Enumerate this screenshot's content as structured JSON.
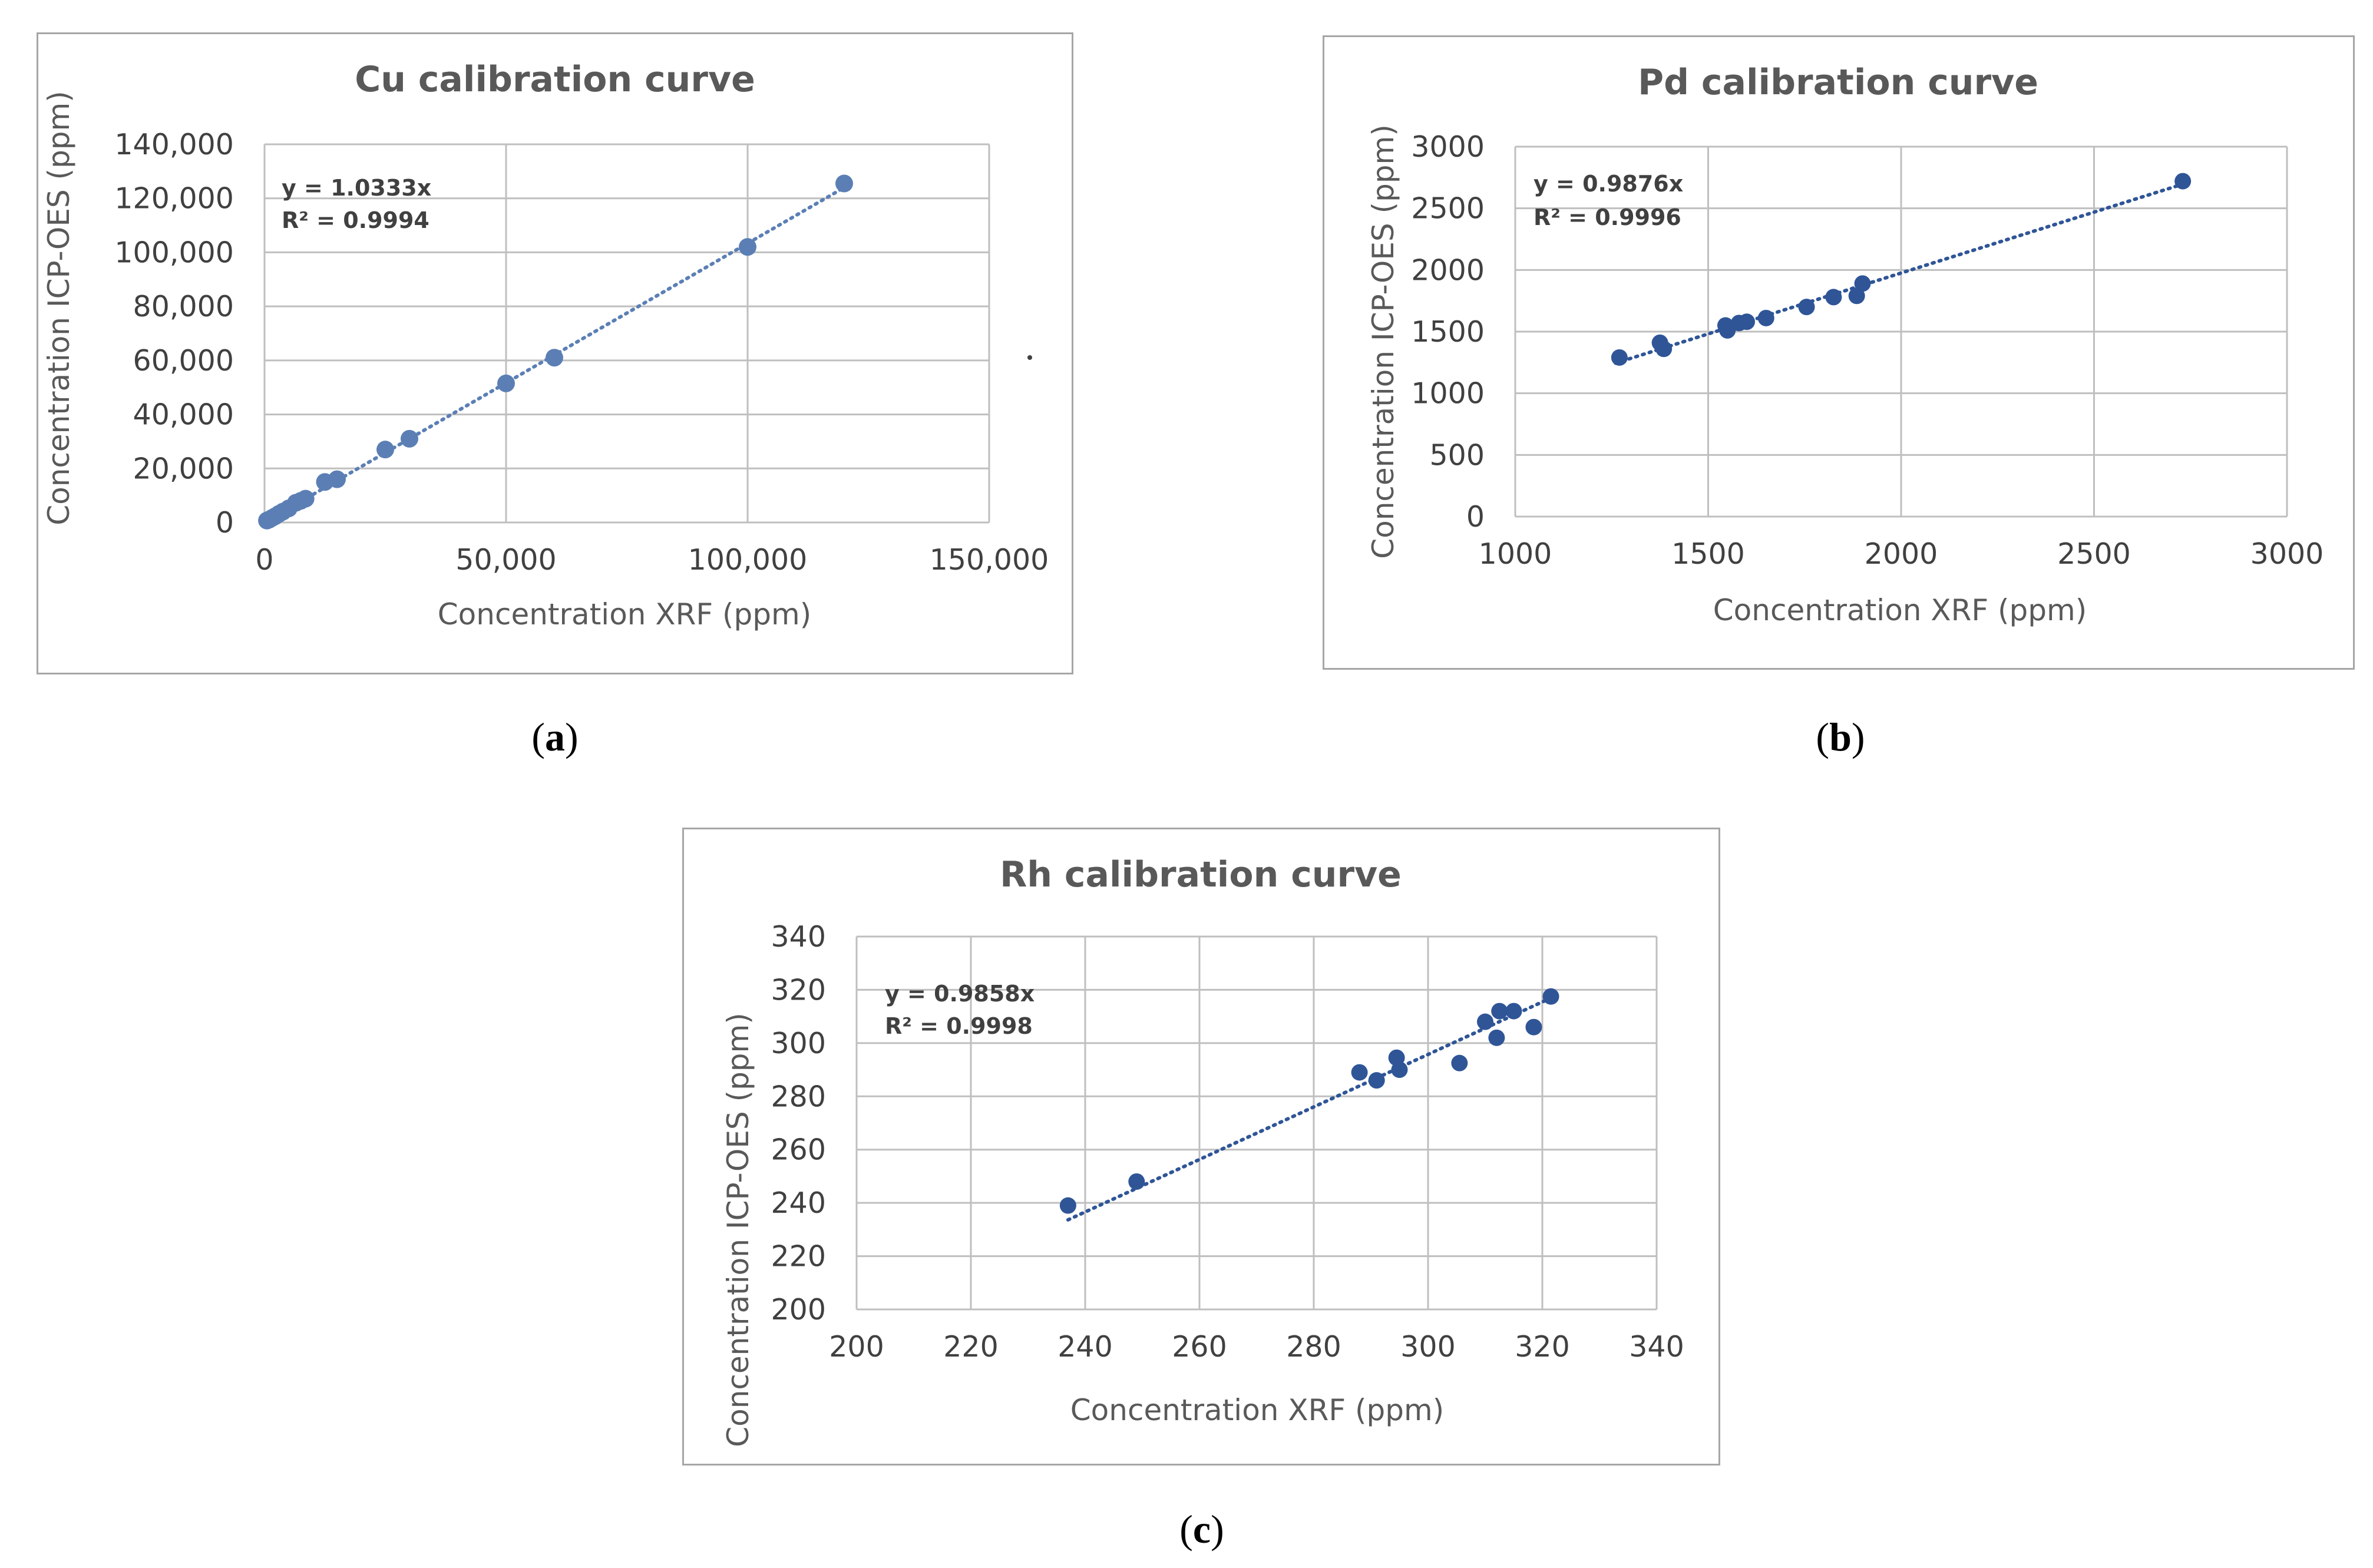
{
  "figure": {
    "captions": {
      "a": {
        "open": "(",
        "letter": "a",
        "close": ")"
      },
      "b": {
        "open": "(",
        "letter": "b",
        "close": ")"
      },
      "c": {
        "open": "(",
        "letter": "c",
        "close": ")"
      }
    }
  },
  "chart_data": [
    {
      "id": "a",
      "type": "scatter",
      "title": "Cu calibration curve",
      "xlabel": "Concentration XRF (ppm)",
      "ylabel": "Concentration ICP-OES (ppm)",
      "xlim": [
        0,
        150000
      ],
      "ylim": [
        0,
        140000
      ],
      "xticks": [
        0,
        50000,
        100000,
        150000
      ],
      "yticks": [
        0,
        20000,
        40000,
        60000,
        80000,
        100000,
        120000,
        140000
      ],
      "xtick_labels": [
        "0",
        "50,000",
        "100,000",
        "150,000"
      ],
      "ytick_labels": [
        "0",
        "20,000",
        "40,000",
        "60,000",
        "80,000",
        "100,000",
        "120,000",
        "140,000"
      ],
      "grid": true,
      "marker_color": "#5b7fb5",
      "trendline": {
        "slope": 1.0333,
        "x_range": [
          0,
          120500
        ]
      },
      "equation_lines": [
        "y = 1.0333x",
        "R² = 0.9994"
      ],
      "points": [
        {
          "x": 500,
          "y": 700
        },
        {
          "x": 1000,
          "y": 1100
        },
        {
          "x": 1600,
          "y": 1700
        },
        {
          "x": 2200,
          "y": 2300
        },
        {
          "x": 3000,
          "y": 3200
        },
        {
          "x": 3800,
          "y": 4000
        },
        {
          "x": 5000,
          "y": 5200
        },
        {
          "x": 6500,
          "y": 7300
        },
        {
          "x": 7500,
          "y": 8000
        },
        {
          "x": 8500,
          "y": 8800
        },
        {
          "x": 12500,
          "y": 15000
        },
        {
          "x": 15000,
          "y": 16000
        },
        {
          "x": 25000,
          "y": 27000
        },
        {
          "x": 30000,
          "y": 31000
        },
        {
          "x": 50000,
          "y": 51500
        },
        {
          "x": 60000,
          "y": 61000
        },
        {
          "x": 100000,
          "y": 102000
        },
        {
          "x": 120000,
          "y": 125500
        }
      ]
    },
    {
      "id": "b",
      "type": "scatter",
      "title": "Pd calibration curve",
      "xlabel": "Concentration XRF (ppm)",
      "ylabel": "Concentration ICP-OES (ppm)",
      "xlim": [
        1000,
        3000
      ],
      "ylim": [
        0,
        3000
      ],
      "xticks": [
        1000,
        1500,
        2000,
        2500,
        3000
      ],
      "yticks": [
        0,
        500,
        1000,
        1500,
        2000,
        2500,
        3000
      ],
      "xtick_labels": [
        "1000",
        "1500",
        "2000",
        "2500",
        "3000"
      ],
      "ytick_labels": [
        "0",
        "500",
        "1000",
        "1500",
        "2000",
        "2500",
        "3000"
      ],
      "grid": true,
      "marker_color": "#2f5597",
      "trendline": {
        "slope": 0.9876,
        "x_range": [
          1260,
          2730
        ]
      },
      "equation_lines": [
        "y = 0.9876x",
        "R² = 0.9996"
      ],
      "points": [
        {
          "x": 1270,
          "y": 1290
        },
        {
          "x": 1375,
          "y": 1410
        },
        {
          "x": 1385,
          "y": 1360
        },
        {
          "x": 1545,
          "y": 1550
        },
        {
          "x": 1550,
          "y": 1510
        },
        {
          "x": 1580,
          "y": 1570
        },
        {
          "x": 1600,
          "y": 1580
        },
        {
          "x": 1650,
          "y": 1610
        },
        {
          "x": 1755,
          "y": 1700
        },
        {
          "x": 1825,
          "y": 1780
        },
        {
          "x": 1885,
          "y": 1790
        },
        {
          "x": 1900,
          "y": 1890
        },
        {
          "x": 2730,
          "y": 2720
        }
      ]
    },
    {
      "id": "c",
      "type": "scatter",
      "title": "Rh calibration curve",
      "xlabel": "Concentration XRF (ppm)",
      "ylabel": "Concentration ICP-OES (ppm)",
      "xlim": [
        200,
        340
      ],
      "ylim": [
        200,
        340
      ],
      "xticks": [
        200,
        220,
        240,
        260,
        280,
        300,
        320,
        340
      ],
      "yticks": [
        200,
        220,
        240,
        260,
        280,
        300,
        320,
        340
      ],
      "xtick_labels": [
        "200",
        "220",
        "240",
        "260",
        "280",
        "300",
        "320",
        "340"
      ],
      "ytick_labels": [
        "200",
        "220",
        "240",
        "260",
        "280",
        "300",
        "320",
        "340"
      ],
      "grid": true,
      "marker_color": "#2f5597",
      "trendline": {
        "slope": 0.9858,
        "x_range": [
          237,
          321.5
        ]
      },
      "equation_lines": [
        "y = 0.9858x",
        "R² = 0.9998"
      ],
      "points": [
        {
          "x": 237,
          "y": 239
        },
        {
          "x": 249,
          "y": 248
        },
        {
          "x": 288,
          "y": 289
        },
        {
          "x": 291,
          "y": 286
        },
        {
          "x": 294.5,
          "y": 294.5
        },
        {
          "x": 295,
          "y": 290
        },
        {
          "x": 305.5,
          "y": 292.5
        },
        {
          "x": 310,
          "y": 308
        },
        {
          "x": 312,
          "y": 302
        },
        {
          "x": 312.5,
          "y": 312
        },
        {
          "x": 315,
          "y": 312
        },
        {
          "x": 318.5,
          "y": 306
        },
        {
          "x": 321.5,
          "y": 317.5
        }
      ]
    }
  ]
}
